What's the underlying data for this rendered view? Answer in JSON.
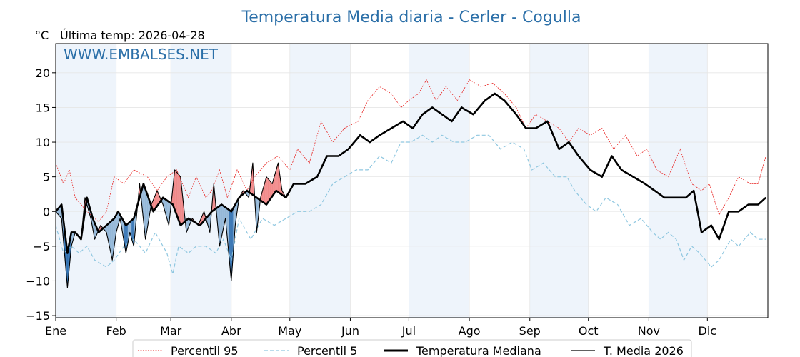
{
  "chart_data": {
    "type": "line",
    "title": "Temperatura Media diaria - Cerler - Cogulla",
    "unit_label": "°C",
    "last_temp_text": "Última temp: 2026-04-28",
    "watermark": "WWW.EMBALSES.NET",
    "ylim": [
      -15.3,
      24.2
    ],
    "yticks": [
      20,
      15,
      10,
      5,
      0,
      -5,
      -10,
      -15
    ],
    "months": [
      "Ene",
      "Feb",
      "Mar",
      "Abr",
      "May",
      "Jun",
      "Jul",
      "Ago",
      "Sep",
      "Oct",
      "Nov",
      "Dic"
    ],
    "month_start_days": [
      0,
      31,
      59,
      90,
      120,
      151,
      181,
      212,
      243,
      273,
      304,
      334
    ],
    "days_in_year": 365,
    "grid": true,
    "legend_position": "bottom",
    "colors": {
      "p95": "#e8211f",
      "p5": "#8fc7e0",
      "median": "#000000",
      "media": "#000000",
      "above": "#f08080",
      "below_light": "#8db3d6",
      "below_dark": "#2166ac",
      "band": "#eef4fb",
      "title": "#2b6fa8"
    },
    "series": [
      {
        "key": "p95",
        "name": "Percentil 95",
        "anchors": [
          [
            0,
            7
          ],
          [
            4,
            4
          ],
          [
            7,
            6
          ],
          [
            10,
            2
          ],
          [
            16,
            0
          ],
          [
            22,
            -1.5
          ],
          [
            26,
            0
          ],
          [
            30,
            5
          ],
          [
            35,
            4
          ],
          [
            40,
            6
          ],
          [
            47,
            5
          ],
          [
            52,
            3
          ],
          [
            57,
            5
          ],
          [
            62,
            6
          ],
          [
            68,
            2
          ],
          [
            72,
            5
          ],
          [
            77,
            2
          ],
          [
            80,
            3
          ],
          [
            84,
            6
          ],
          [
            88,
            2
          ],
          [
            93,
            6
          ],
          [
            98,
            3
          ],
          [
            102,
            5
          ],
          [
            108,
            7
          ],
          [
            114,
            8
          ],
          [
            120,
            6
          ],
          [
            124,
            9
          ],
          [
            130,
            7
          ],
          [
            136,
            13
          ],
          [
            142,
            10
          ],
          [
            148,
            12
          ],
          [
            155,
            13
          ],
          [
            160,
            16
          ],
          [
            166,
            18
          ],
          [
            172,
            17
          ],
          [
            177,
            15
          ],
          [
            181,
            16
          ],
          [
            186,
            17
          ],
          [
            190,
            19
          ],
          [
            195,
            16
          ],
          [
            200,
            18
          ],
          [
            206,
            16
          ],
          [
            212,
            19
          ],
          [
            218,
            18
          ],
          [
            224,
            18.5
          ],
          [
            230,
            17
          ],
          [
            236,
            15
          ],
          [
            241,
            12
          ],
          [
            246,
            14
          ],
          [
            252,
            13
          ],
          [
            258,
            12
          ],
          [
            263,
            10
          ],
          [
            268,
            12
          ],
          [
            274,
            11
          ],
          [
            280,
            12
          ],
          [
            286,
            9
          ],
          [
            292,
            11
          ],
          [
            298,
            8
          ],
          [
            303,
            9
          ],
          [
            308,
            6
          ],
          [
            314,
            5
          ],
          [
            320,
            9
          ],
          [
            326,
            4
          ],
          [
            331,
            3
          ],
          [
            335,
            4
          ],
          [
            340,
            -0.5
          ],
          [
            345,
            2
          ],
          [
            350,
            5
          ],
          [
            356,
            4
          ],
          [
            360,
            4
          ],
          [
            364,
            8
          ]
        ]
      },
      {
        "key": "p5",
        "name": "Percentil 5",
        "anchors": [
          [
            0,
            -2
          ],
          [
            4,
            -6
          ],
          [
            8,
            -5
          ],
          [
            12,
            -6
          ],
          [
            16,
            -5
          ],
          [
            20,
            -7
          ],
          [
            26,
            -8
          ],
          [
            30,
            -7
          ],
          [
            35,
            -5
          ],
          [
            40,
            -4
          ],
          [
            46,
            -6
          ],
          [
            51,
            -3
          ],
          [
            57,
            -6
          ],
          [
            60,
            -9
          ],
          [
            63,
            -5
          ],
          [
            68,
            -6
          ],
          [
            72,
            -5
          ],
          [
            77,
            -5
          ],
          [
            82,
            -6
          ],
          [
            86,
            -4
          ],
          [
            90,
            -7
          ],
          [
            94,
            -1
          ],
          [
            100,
            -4
          ],
          [
            106,
            -1
          ],
          [
            112,
            -2
          ],
          [
            118,
            -1
          ],
          [
            124,
            0
          ],
          [
            130,
            0
          ],
          [
            136,
            1
          ],
          [
            142,
            4
          ],
          [
            148,
            5
          ],
          [
            154,
            6
          ],
          [
            160,
            6
          ],
          [
            166,
            8
          ],
          [
            172,
            7
          ],
          [
            177,
            10
          ],
          [
            182,
            10
          ],
          [
            188,
            11
          ],
          [
            193,
            10
          ],
          [
            198,
            11
          ],
          [
            204,
            10
          ],
          [
            210,
            10
          ],
          [
            216,
            11
          ],
          [
            222,
            11
          ],
          [
            228,
            9
          ],
          [
            234,
            10
          ],
          [
            240,
            9
          ],
          [
            244,
            6
          ],
          [
            250,
            7
          ],
          [
            256,
            5
          ],
          [
            262,
            5
          ],
          [
            266,
            3
          ],
          [
            272,
            1
          ],
          [
            277,
            0
          ],
          [
            282,
            2
          ],
          [
            288,
            1
          ],
          [
            294,
            -2
          ],
          [
            300,
            -1
          ],
          [
            306,
            -3
          ],
          [
            310,
            -4
          ],
          [
            314,
            -3
          ],
          [
            318,
            -4
          ],
          [
            322,
            -7
          ],
          [
            326,
            -5
          ],
          [
            330,
            -6
          ],
          [
            336,
            -8
          ],
          [
            340,
            -7
          ],
          [
            346,
            -4
          ],
          [
            350,
            -5
          ],
          [
            356,
            -3
          ],
          [
            360,
            -4
          ],
          [
            364,
            -4
          ]
        ]
      },
      {
        "key": "median",
        "name": "Temperatura Mediana",
        "anchors": [
          [
            0,
            0
          ],
          [
            3,
            1
          ],
          [
            6,
            -6
          ],
          [
            8,
            -3
          ],
          [
            10,
            -3
          ],
          [
            13,
            -4
          ],
          [
            16,
            2
          ],
          [
            19,
            -1
          ],
          [
            22,
            -3
          ],
          [
            26,
            -2
          ],
          [
            30,
            -1
          ],
          [
            32,
            0
          ],
          [
            36,
            -2
          ],
          [
            40,
            -1
          ],
          [
            45,
            4
          ],
          [
            50,
            0
          ],
          [
            55,
            2
          ],
          [
            60,
            1
          ],
          [
            64,
            -2
          ],
          [
            68,
            -1
          ],
          [
            74,
            -2
          ],
          [
            80,
            0
          ],
          [
            85,
            1
          ],
          [
            90,
            0
          ],
          [
            94,
            2
          ],
          [
            98,
            3
          ],
          [
            103,
            2
          ],
          [
            108,
            1
          ],
          [
            113,
            3
          ],
          [
            118,
            2
          ],
          [
            122,
            4
          ],
          [
            128,
            4
          ],
          [
            134,
            5
          ],
          [
            139,
            8
          ],
          [
            145,
            8
          ],
          [
            150,
            9
          ],
          [
            156,
            11
          ],
          [
            161,
            10
          ],
          [
            166,
            11
          ],
          [
            172,
            12
          ],
          [
            178,
            13
          ],
          [
            183,
            12
          ],
          [
            188,
            14
          ],
          [
            193,
            15
          ],
          [
            198,
            14
          ],
          [
            203,
            13
          ],
          [
            208,
            15
          ],
          [
            214,
            14
          ],
          [
            220,
            16
          ],
          [
            225,
            17
          ],
          [
            230,
            16
          ],
          [
            236,
            14
          ],
          [
            241,
            12
          ],
          [
            246,
            12
          ],
          [
            252,
            13
          ],
          [
            258,
            9
          ],
          [
            263,
            10
          ],
          [
            268,
            8
          ],
          [
            274,
            6
          ],
          [
            280,
            5
          ],
          [
            285,
            8
          ],
          [
            290,
            6
          ],
          [
            296,
            5
          ],
          [
            302,
            4
          ],
          [
            307,
            3
          ],
          [
            312,
            2
          ],
          [
            318,
            2
          ],
          [
            323,
            2
          ],
          [
            327,
            3
          ],
          [
            331,
            -3
          ],
          [
            336,
            -2
          ],
          [
            340,
            -4
          ],
          [
            345,
            0
          ],
          [
            350,
            0
          ],
          [
            355,
            1
          ],
          [
            360,
            1
          ],
          [
            364,
            2
          ]
        ]
      },
      {
        "key": "media",
        "name": "T. Media 2026",
        "anchors": [
          [
            0,
            0
          ],
          [
            3,
            -1
          ],
          [
            6,
            -11
          ],
          [
            8,
            -5
          ],
          [
            10,
            -3
          ],
          [
            13,
            -4
          ],
          [
            15,
            2
          ],
          [
            18,
            -1
          ],
          [
            20,
            -4
          ],
          [
            23,
            -2
          ],
          [
            26,
            -3
          ],
          [
            29,
            -7
          ],
          [
            31,
            -3
          ],
          [
            33,
            -1
          ],
          [
            36,
            -6
          ],
          [
            38,
            -3
          ],
          [
            40,
            -5
          ],
          [
            43,
            4
          ],
          [
            46,
            -4
          ],
          [
            49,
            1
          ],
          [
            52,
            3
          ],
          [
            55,
            1
          ],
          [
            58,
            -2
          ],
          [
            61,
            6
          ],
          [
            64,
            5
          ],
          [
            67,
            -3
          ],
          [
            70,
            -1
          ],
          [
            73,
            -2
          ],
          [
            76,
            0
          ],
          [
            79,
            -3
          ],
          [
            81,
            4
          ],
          [
            84,
            -5
          ],
          [
            87,
            -1
          ],
          [
            90,
            -10
          ],
          [
            92,
            -2
          ],
          [
            94,
            2
          ],
          [
            96,
            3
          ],
          [
            99,
            2
          ],
          [
            101,
            7
          ],
          [
            103,
            -3
          ],
          [
            105,
            2
          ],
          [
            108,
            5
          ],
          [
            111,
            4
          ],
          [
            114,
            7
          ],
          [
            116,
            3
          ],
          [
            118,
            2
          ]
        ]
      }
    ]
  },
  "legend": {
    "p95": "Percentil 95",
    "p5": "Percentil 5",
    "median": "Temperatura Mediana",
    "media": "T. Media 2026"
  }
}
